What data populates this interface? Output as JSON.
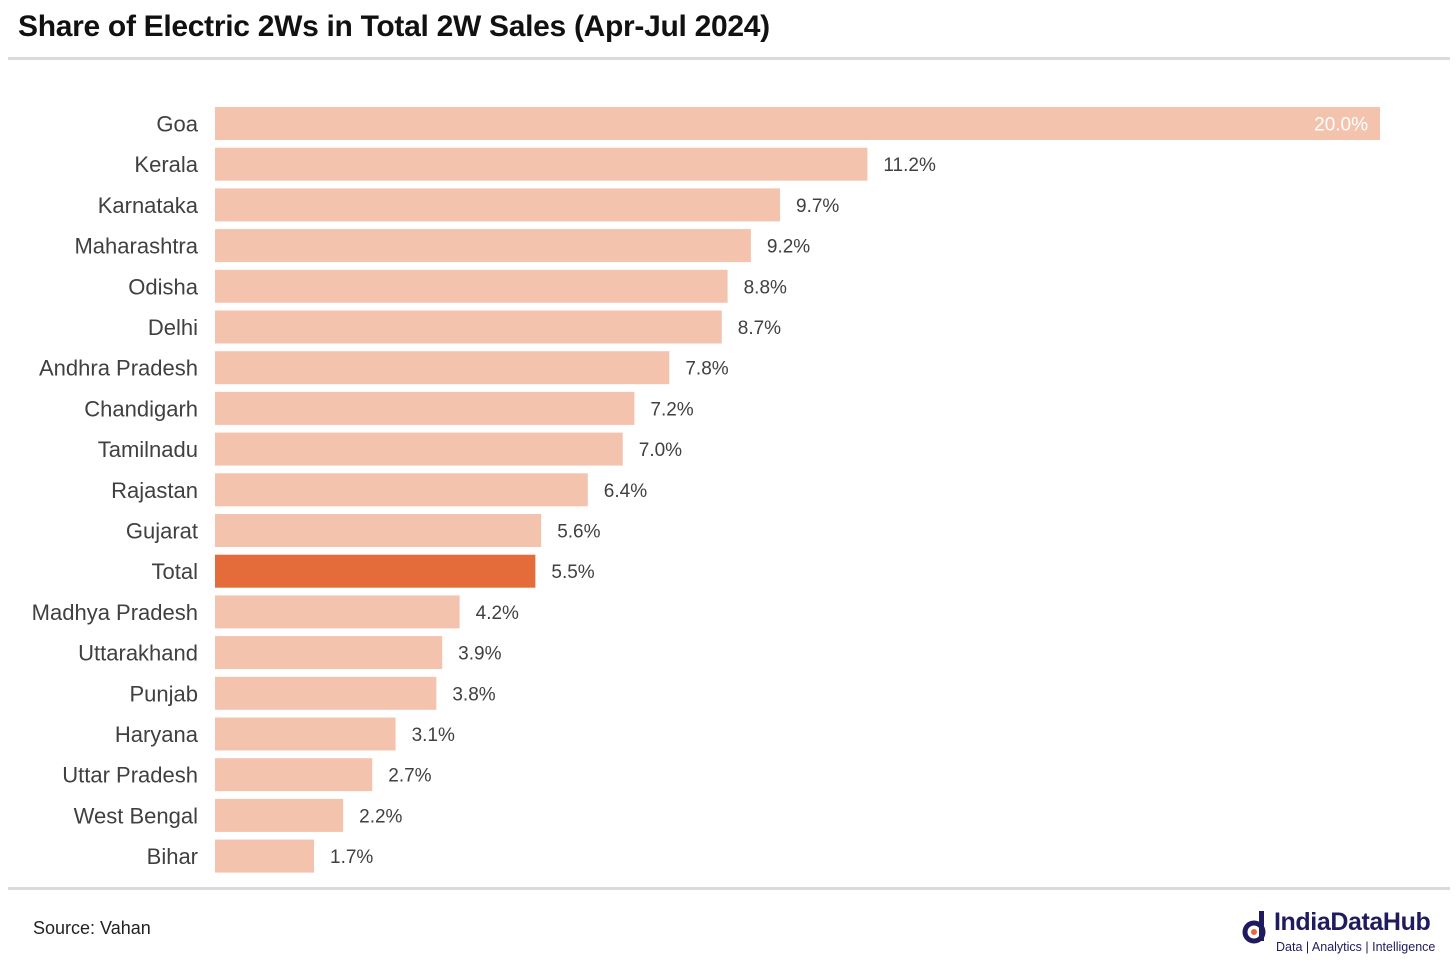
{
  "title": "Share of Electric 2Ws in Total 2W Sales (Apr-Jul 2024)",
  "source": "Source: Vahan",
  "logo": {
    "name": "IndiaDataHub",
    "tagline": "Data | Analytics | Intelligence"
  },
  "colors": {
    "bar": "#f4c3ae",
    "highlight": "#e46c3a",
    "label": "#404040",
    "logo": "#1f1b5e"
  },
  "chart_data": {
    "type": "bar",
    "orientation": "horizontal",
    "categories": [
      "Goa",
      "Kerala",
      "Karnataka",
      "Maharashtra",
      "Odisha",
      "Delhi",
      "Andhra Pradesh",
      "Chandigarh",
      "Tamilnadu",
      "Rajastan",
      "Gujarat",
      "Total",
      "Madhya Pradesh",
      "Uttarakhand",
      "Punjab",
      "Haryana",
      "Uttar Pradesh",
      "West Bengal",
      "Bihar"
    ],
    "values": [
      20.0,
      11.2,
      9.7,
      9.2,
      8.8,
      8.7,
      7.8,
      7.2,
      7.0,
      6.4,
      5.6,
      5.5,
      4.2,
      3.9,
      3.8,
      3.1,
      2.7,
      2.2,
      1.7
    ],
    "value_labels": [
      "20.0%",
      "11.2%",
      "9.7%",
      "9.2%",
      "8.8%",
      "8.7%",
      "7.8%",
      "7.2%",
      "7.0%",
      "6.4%",
      "5.6%",
      "5.5%",
      "4.2%",
      "3.9%",
      "3.8%",
      "3.1%",
      "2.7%",
      "2.2%",
      "1.7%"
    ],
    "highlight_category": "Total",
    "unit": "%",
    "xlim": [
      0,
      20
    ],
    "grid": false,
    "legend": "none"
  }
}
